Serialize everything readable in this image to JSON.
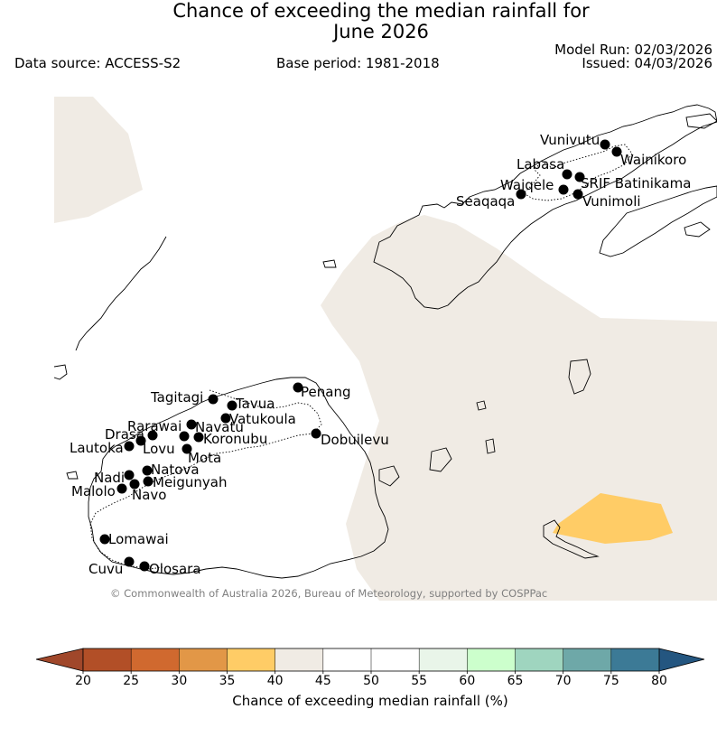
{
  "header": {
    "title_line1": "Chance of exceeding the median rainfall for",
    "title_line2": "June 2026",
    "data_source": "Data source: ACCESS-S2",
    "base_period": "Base period: 1981-2018",
    "model_run": "Model Run: 02/03/2026",
    "issued": "Issued: 04/03/2026"
  },
  "map": {
    "copyright": "© Commonwealth of Australia 2026, Bureau of Meteorology, supported by COSPPac",
    "categories": [
      {
        "range": "40-45",
        "color": "#f0ebe4",
        "description": "near-median band covering most of the sea area"
      },
      {
        "range": "35-40",
        "color": "#ffcc66",
        "description": "patch near Kadavu, south-east"
      }
    ],
    "stations": [
      {
        "name": "Vunivutu"
      },
      {
        "name": "Wainikoro"
      },
      {
        "name": "Labasa"
      },
      {
        "name": "Waiqele"
      },
      {
        "name": "SRIF Batinikama"
      },
      {
        "name": "Seaqaqa"
      },
      {
        "name": "Vunimoli"
      },
      {
        "name": "Tagitagi"
      },
      {
        "name": "Tavua"
      },
      {
        "name": "Penang"
      },
      {
        "name": "Vatukoula"
      },
      {
        "name": "Rarawai"
      },
      {
        "name": "Navatu"
      },
      {
        "name": "Drasa"
      },
      {
        "name": "Koronubu"
      },
      {
        "name": "Lautoka"
      },
      {
        "name": "Lovu"
      },
      {
        "name": "Dobuilevu"
      },
      {
        "name": "Mota"
      },
      {
        "name": "Natova"
      },
      {
        "name": "Nadi"
      },
      {
        "name": "Meigunyah"
      },
      {
        "name": "Malolo"
      },
      {
        "name": "Navo"
      },
      {
        "name": "Lomawai"
      },
      {
        "name": "Cuvu"
      },
      {
        "name": "Olosara"
      }
    ]
  },
  "colorbar": {
    "label": "Chance of exceeding median rainfall (%)",
    "ticks": [
      "20",
      "25",
      "30",
      "35",
      "40",
      "45",
      "50",
      "55",
      "60",
      "65",
      "70",
      "75",
      "80"
    ],
    "below_color": "#a0472a",
    "above_color": "#245680",
    "colors": [
      "#b24f27",
      "#d0692f",
      "#e29747",
      "#ffcc66",
      "#f0ebe4",
      "#ffffff",
      "#ffffff",
      "#e9f5e9",
      "#ccffcc",
      "#9fd5bf",
      "#6ea8a8",
      "#3c7a96"
    ]
  }
}
